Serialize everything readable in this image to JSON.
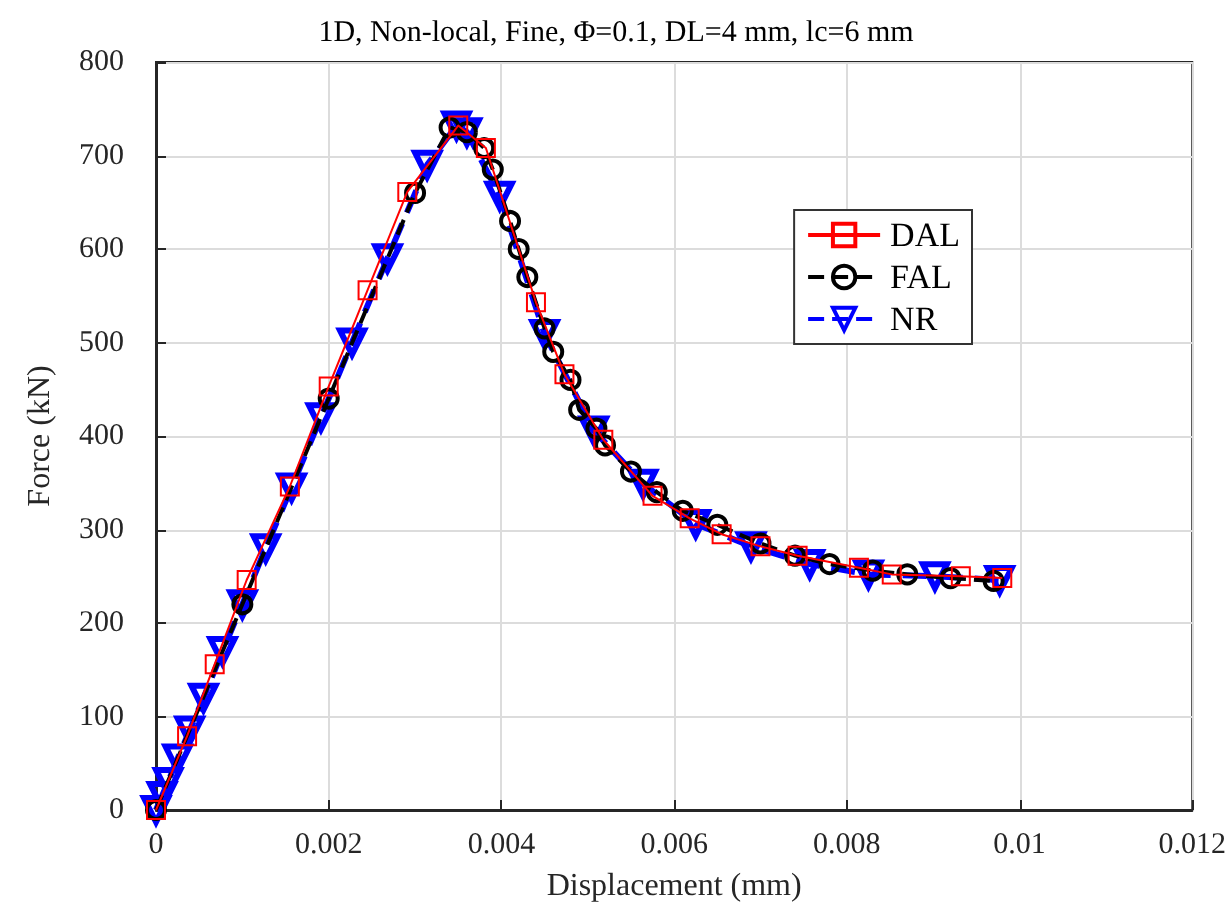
{
  "chart_data": {
    "type": "line",
    "title": "1D, Non-local, Fine, Φ=0.1, DL=4 mm, lc=6 mm",
    "xlabel": "Displacement (mm)",
    "ylabel": "Force (kN)",
    "xlim": [
      0,
      0.012
    ],
    "xticks": [
      0,
      0.002,
      0.004,
      0.006,
      0.008,
      0.01,
      0.012
    ],
    "ylim": [
      0,
      800
    ],
    "yticks": [
      0,
      100,
      200,
      300,
      400,
      500,
      600,
      700,
      800
    ],
    "grid": true,
    "legend": "top right",
    "series": [
      {
        "name": "DAL",
        "color": "#ff0000",
        "marker": "square",
        "line_style": "solid",
        "x": [
          0,
          0.00036,
          0.00068,
          0.00105,
          0.00155,
          0.002,
          0.00245,
          0.00291,
          0.0035,
          0.00382,
          0.0044,
          0.00473,
          0.00518,
          0.00575,
          0.00618,
          0.00655,
          0.007,
          0.00743,
          0.00814,
          0.00852,
          0.00932,
          0.0098
        ],
        "values": [
          0,
          79,
          156,
          246,
          346,
          453,
          556,
          661,
          732,
          708,
          543,
          466,
          396,
          336,
          312,
          295,
          282,
          272,
          259,
          252,
          250,
          248
        ]
      },
      {
        "name": "FAL",
        "color": "#000000",
        "marker": "circle",
        "line_style": "dashed",
        "x": [
          0,
          0.001,
          0.002,
          0.003,
          0.0034,
          0.0036,
          0.0038,
          0.0039,
          0.0041,
          0.0042,
          0.0043,
          0.0045,
          0.0046,
          0.0048,
          0.0049,
          0.0051,
          0.0052,
          0.0055,
          0.0058,
          0.0061,
          0.0065,
          0.007,
          0.0074,
          0.0078,
          0.0083,
          0.0087,
          0.0092,
          0.0097
        ],
        "values": [
          0,
          220,
          440,
          660,
          730,
          725,
          708,
          685,
          630,
          600,
          570,
          515,
          490,
          460,
          428,
          408,
          390,
          362,
          340,
          320,
          305,
          285,
          272,
          263,
          256,
          252,
          248,
          245
        ]
      },
      {
        "name": "NR",
        "color": "#0000ff",
        "marker": "triangle",
        "line_style": "dashed",
        "x": [
          0,
          7e-05,
          0.00014,
          0.00025,
          0.00039,
          0.00055,
          0.00077,
          0.001,
          0.00127,
          0.00157,
          0.00191,
          0.00227,
          0.00268,
          0.00314,
          0.00348,
          0.0036,
          0.00398,
          0.0045,
          0.00507,
          0.00564,
          0.00625,
          0.00689,
          0.00757,
          0.00825,
          0.00902,
          0.00977
        ],
        "values": [
          0,
          15,
          30,
          55,
          85,
          120,
          170,
          220,
          280,
          345,
          420,
          500,
          590,
          690,
          732,
          725,
          657,
          509,
          406,
          349,
          306,
          282,
          263,
          252,
          250,
          246
        ]
      }
    ]
  }
}
